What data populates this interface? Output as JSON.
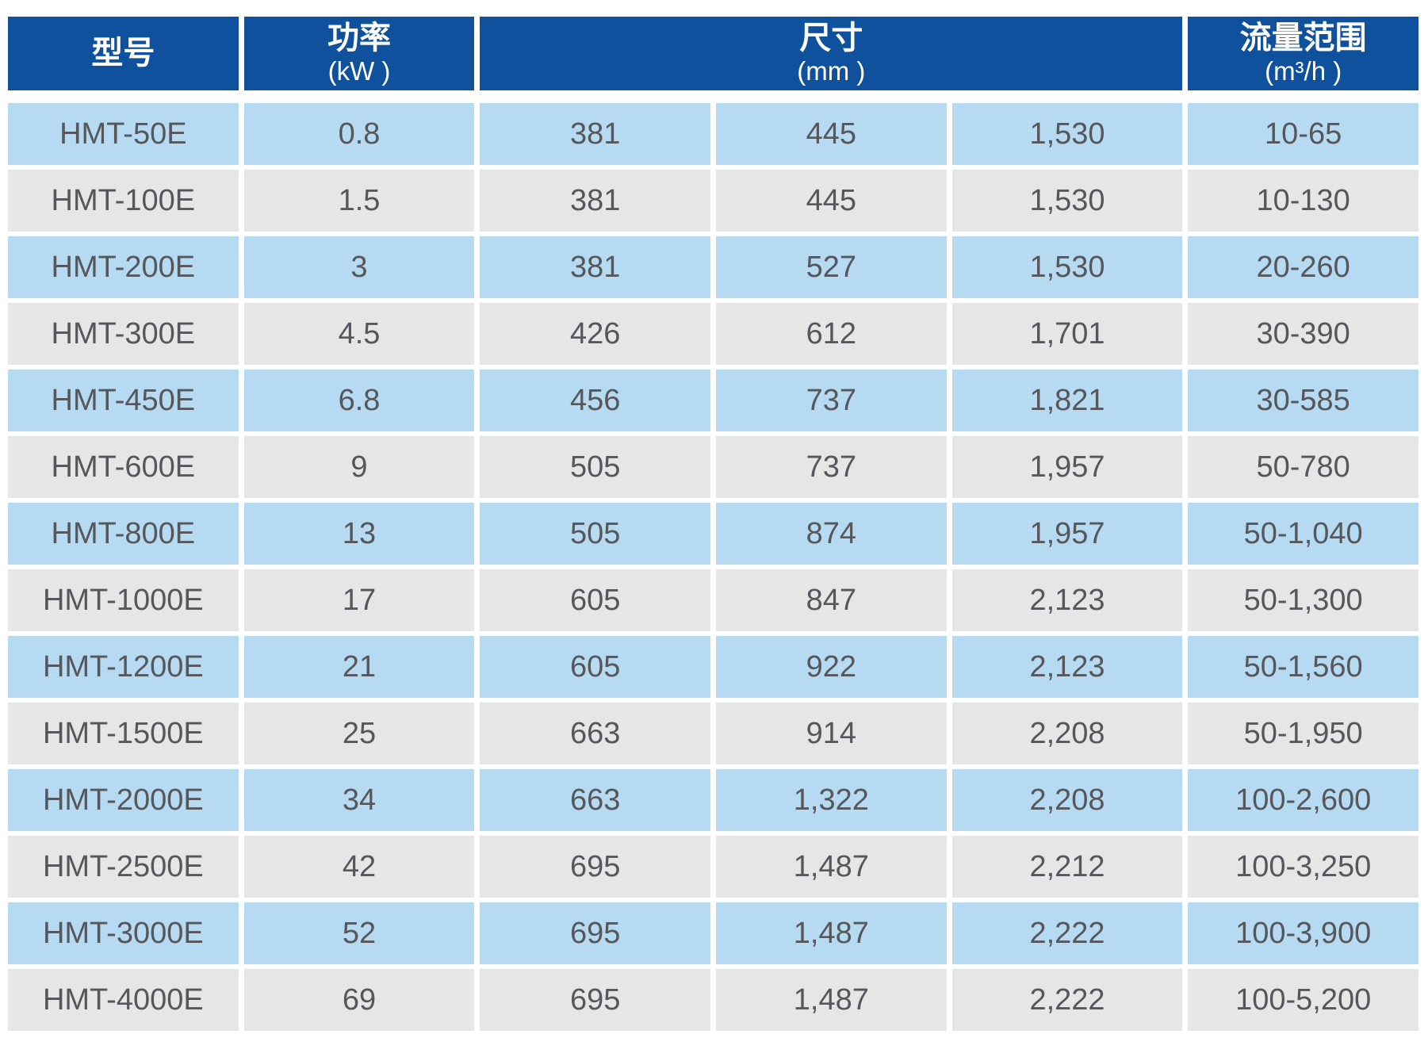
{
  "table": {
    "header": {
      "model": {
        "title": "型号",
        "unit": ""
      },
      "power": {
        "title": "功率",
        "unit": "(kW )"
      },
      "dimensions": {
        "title": "尺寸",
        "unit": "(mm )"
      },
      "flow": {
        "title": "流量范围",
        "unit": "(m³/h )"
      }
    },
    "rows": [
      {
        "cells": [
          "HMT-50E",
          "0.8",
          "381",
          "445",
          "1,530",
          "10-65"
        ]
      },
      {
        "cells": [
          "HMT-100E",
          "1.5",
          "381",
          "445",
          "1,530",
          "10-130"
        ]
      },
      {
        "cells": [
          "HMT-200E",
          "3",
          "381",
          "527",
          "1,530",
          "20-260"
        ]
      },
      {
        "cells": [
          "HMT-300E",
          "4.5",
          "426",
          "612",
          "1,701",
          "30-390"
        ]
      },
      {
        "cells": [
          "HMT-450E",
          "6.8",
          "456",
          "737",
          "1,821",
          "30-585"
        ]
      },
      {
        "cells": [
          "HMT-600E",
          "9",
          "505",
          "737",
          "1,957",
          "50-780"
        ]
      },
      {
        "cells": [
          "HMT-800E",
          "13",
          "505",
          "874",
          "1,957",
          "50-1,040"
        ]
      },
      {
        "cells": [
          "HMT-1000E",
          "17",
          "605",
          "847",
          "2,123",
          "50-1,300"
        ]
      },
      {
        "cells": [
          "HMT-1200E",
          "21",
          "605",
          "922",
          "2,123",
          "50-1,560"
        ]
      },
      {
        "cells": [
          "HMT-1500E",
          "25",
          "663",
          "914",
          "2,208",
          "50-1,950"
        ]
      },
      {
        "cells": [
          "HMT-2000E",
          "34",
          "663",
          "1,322",
          "2,208",
          "100-2,600"
        ]
      },
      {
        "cells": [
          "HMT-2500E",
          "42",
          "695",
          "1,487",
          "2,212",
          "100-3,250"
        ]
      },
      {
        "cells": [
          "HMT-3000E",
          "52",
          "695",
          "1,487",
          "2,222",
          "100-3,900"
        ]
      },
      {
        "cells": [
          "HMT-4000E",
          "69",
          "695",
          "1,487",
          "2,222",
          "100-5,200"
        ]
      }
    ],
    "colors": {
      "header_bg": "#10519E",
      "header_text": "#FFFFFF",
      "row_blue": "#B5DAF2",
      "row_gray": "#E6E6E7",
      "cell_text": "#55575B"
    }
  }
}
